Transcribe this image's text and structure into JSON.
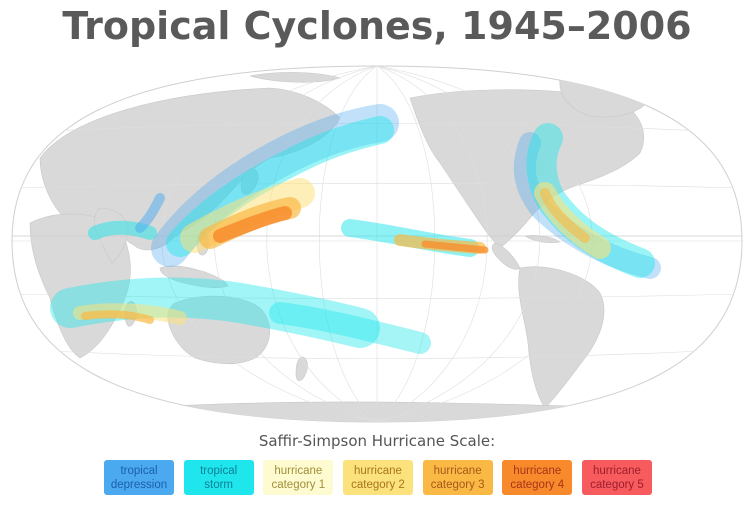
{
  "title": "Tropical Cyclones, 1945–2006",
  "legend": {
    "heading": "Saffir-Simpson Hurricane Scale:",
    "items": [
      {
        "label": "tropical\ndepression",
        "color": "#4aa9ef",
        "text_color": "#1d5fb0"
      },
      {
        "label": "tropical\nstorm",
        "color": "#1ee6ec",
        "text_color": "#0e7f96"
      },
      {
        "label": "hurricane\ncategory 1",
        "color": "#fdfbcf",
        "text_color": "#a38f3a"
      },
      {
        "label": "hurricane\ncategory 2",
        "color": "#fbe27c",
        "text_color": "#a9761a"
      },
      {
        "label": "hurricane\ncategory 3",
        "color": "#f9b944",
        "text_color": "#a8581b"
      },
      {
        "label": "hurricane\ncategory 4",
        "color": "#f88a2b",
        "text_color": "#a6341a"
      },
      {
        "label": "hurricane\ncategory 5",
        "color": "#f75b5d",
        "text_color": "#9e1e2e"
      }
    ]
  },
  "map": {
    "ocean_color": "#ffffff",
    "land_color": "#d9d9d9",
    "graticule_color": "#d6d6d6"
  }
}
